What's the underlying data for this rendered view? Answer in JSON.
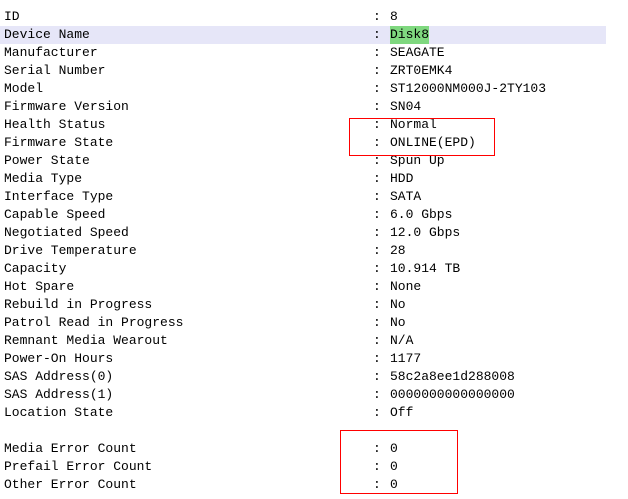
{
  "separator": ":",
  "highlight_color": "#7fd87f",
  "annotation_color": "#ff0000",
  "properties": [
    {
      "label": "ID",
      "value": "8"
    },
    {
      "label": "Device Name",
      "value": "Disk8",
      "selected": true
    },
    {
      "label": "Manufacturer",
      "value": "SEAGATE"
    },
    {
      "label": "Serial Number",
      "value": "ZRT0EMK4"
    },
    {
      "label": "Model",
      "value": "ST12000NM000J-2TY103"
    },
    {
      "label": "Firmware Version",
      "value": "SN04"
    },
    {
      "label": "Health Status",
      "value": "Normal"
    },
    {
      "label": "Firmware State",
      "value": "ONLINE(EPD)"
    },
    {
      "label": "Power State",
      "value": "Spun Up"
    },
    {
      "label": "Media Type",
      "value": "HDD"
    },
    {
      "label": "Interface Type",
      "value": "SATA"
    },
    {
      "label": "Capable Speed",
      "value": "6.0 Gbps"
    },
    {
      "label": "Negotiated Speed",
      "value": "12.0 Gbps"
    },
    {
      "label": "Drive Temperature",
      "value": "28"
    },
    {
      "label": "Capacity",
      "value": "10.914 TB"
    },
    {
      "label": "Hot Spare",
      "value": "None"
    },
    {
      "label": "Rebuild in Progress",
      "value": "No"
    },
    {
      "label": "Patrol Read in Progress",
      "value": "No"
    },
    {
      "label": "Remnant Media Wearout",
      "value": "N/A"
    },
    {
      "label": "Power-On Hours",
      "value": "1177"
    },
    {
      "label": "SAS Address(0)",
      "value": "58c2a8ee1d288008"
    },
    {
      "label": "SAS Address(1)",
      "value": "0000000000000000"
    },
    {
      "label": "Location State",
      "value": "Off"
    },
    null,
    {
      "label": "Media Error Count",
      "value": "0"
    },
    {
      "label": "Prefail Error Count",
      "value": "0"
    },
    {
      "label": "Other Error Count",
      "value": "0"
    }
  ]
}
